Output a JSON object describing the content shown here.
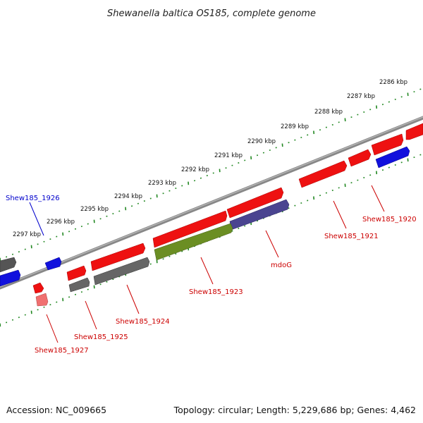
{
  "title": "Shewanella baltica OS185, complete genome",
  "footer": {
    "accession": "Accession: NC_009665",
    "topology": "Topology: circular; Length: 5,229,686 bp; Genes: 4,462"
  },
  "kbp_labels": [
    "2286 kbp",
    "2287 kbp",
    "2288 kbp",
    "2289 kbp",
    "2290 kbp",
    "2291 kbp",
    "2292 kbp",
    "2293 kbp",
    "2294 kbp",
    "2295 kbp",
    "2296 kbp",
    "2297 kbp"
  ],
  "gene_labels": [
    {
      "name": "Shew185_1920",
      "color": "#cc0000"
    },
    {
      "name": "Shew185_1921",
      "color": "#cc0000"
    },
    {
      "name": "mdoG",
      "color": "#cc0000"
    },
    {
      "name": "Shew185_1923",
      "color": "#cc0000"
    },
    {
      "name": "Shew185_1924",
      "color": "#cc0000"
    },
    {
      "name": "Shew185_1925",
      "color": "#cc0000"
    },
    {
      "name": "Shew185_1927",
      "color": "#cc0000"
    },
    {
      "name": "Shew185_1926",
      "color": "#0000cc"
    }
  ],
  "colors": {
    "red_gene": "#ee1111",
    "blue_gene": "#1111dd",
    "gray_gene": "#666666",
    "olive_gene": "#6b8e23",
    "navy_gene": "#4a4490",
    "backbone": "#888888",
    "tick": "#228822"
  }
}
